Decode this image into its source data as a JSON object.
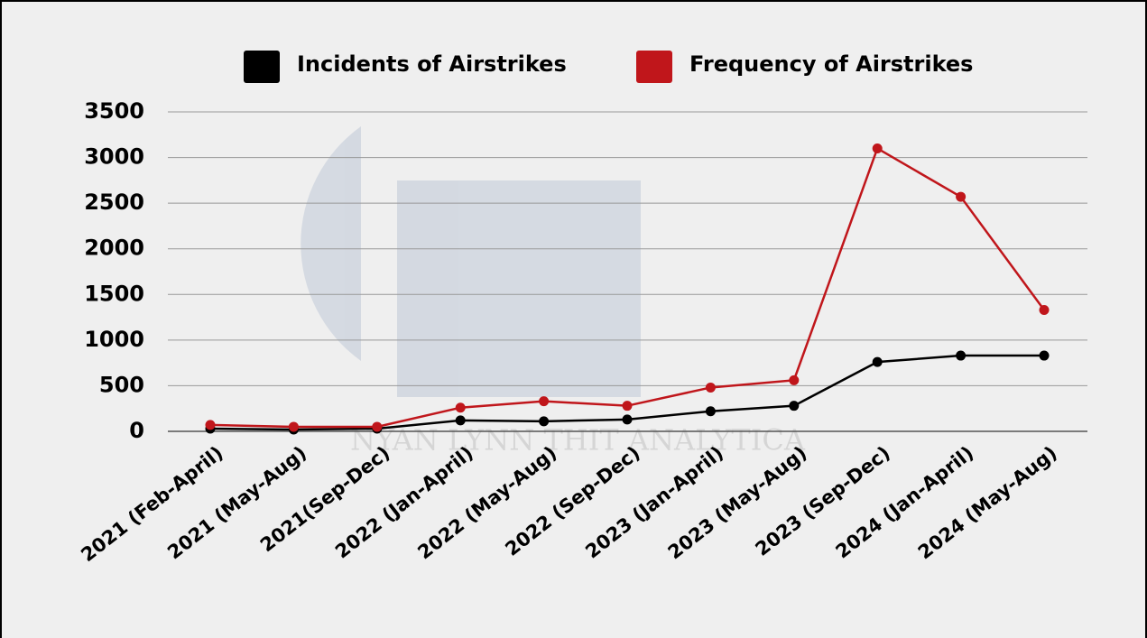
{
  "chart_data": {
    "type": "line",
    "watermark": "NYAN LYNN THIT ANALYTICA",
    "categories": [
      "2021 (Feb-April)",
      "2021 (May-Aug)",
      "2021(Sep-Dec)",
      "2022 (Jan-April)",
      "2022 (May-Aug)",
      "2022 (Sep-Dec)",
      "2023 (Jan-April)",
      "2023 (May-Aug)",
      "2023 (Sep-Dec)",
      "2024 (Jan-April)",
      "2024 (May-Aug)"
    ],
    "series": [
      {
        "name": "Incidents of Airstrikes",
        "color": "#000000",
        "values": [
          30,
          20,
          30,
          120,
          110,
          130,
          220,
          280,
          760,
          830,
          830
        ]
      },
      {
        "name": "Frequency of Airstrikes",
        "color": "#c0161b",
        "values": [
          70,
          50,
          50,
          260,
          330,
          280,
          480,
          560,
          3100,
          2570,
          1330
        ]
      }
    ],
    "ylim": [
      0,
      3500
    ],
    "yticks": [
      0,
      500,
      1000,
      1500,
      2000,
      2500,
      3000,
      3500
    ],
    "grid": true,
    "legend": "top"
  }
}
